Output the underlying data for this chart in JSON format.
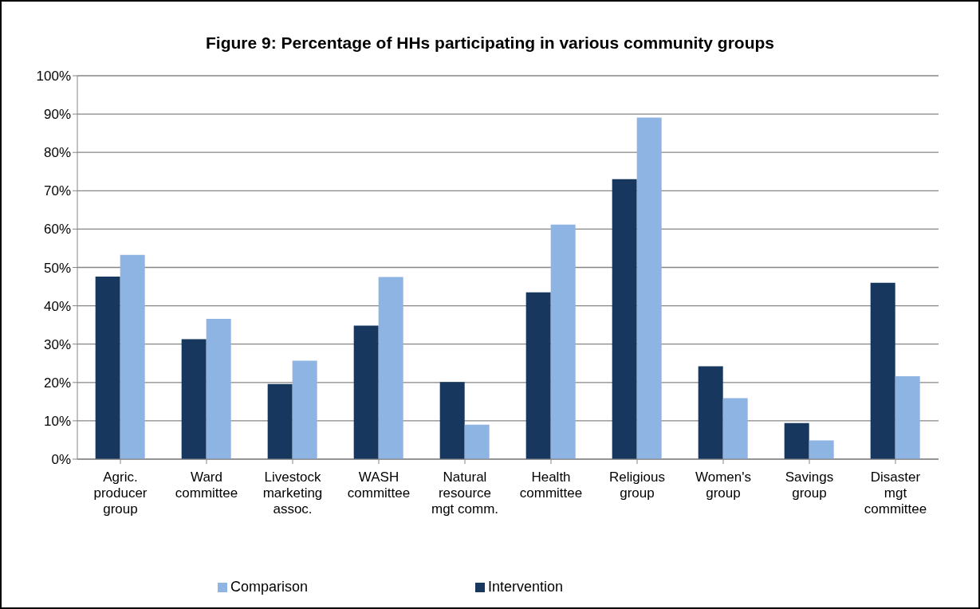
{
  "chart_data": {
    "type": "bar",
    "title": "Figure 9:  Percentage of HHs participating in various community groups",
    "categories": [
      "Agric. producer group",
      "Ward committee",
      "Livestock marketing assoc.",
      "WASH committee",
      "Natural resource mgt comm.",
      "Health committee",
      "Religious group",
      "Women's group",
      "Savings group",
      "Disaster mgt committee"
    ],
    "series": [
      {
        "name": "Intervention",
        "color": "#17375e",
        "values": [
          47.6,
          31.3,
          19.6,
          34.8,
          20.1,
          43.5,
          73.0,
          24.2,
          9.4,
          46.0
        ]
      },
      {
        "name": "Comparison",
        "color": "#8eb4e3",
        "values": [
          53.3,
          36.6,
          25.7,
          47.5,
          9.0,
          61.2,
          89.1,
          15.9,
          4.9,
          21.6
        ]
      }
    ],
    "ylim": [
      0,
      100
    ],
    "yticks": [
      {
        "value": 0,
        "label": "0%"
      },
      {
        "value": 10,
        "label": "10%"
      },
      {
        "value": 20,
        "label": "20%"
      },
      {
        "value": 30,
        "label": "30%"
      },
      {
        "value": 40,
        "label": "40%"
      },
      {
        "value": 50,
        "label": "50%"
      },
      {
        "value": 60,
        "label": "60%"
      },
      {
        "value": 70,
        "label": "70%"
      },
      {
        "value": 80,
        "label": "80%"
      },
      {
        "value": 90,
        "label": "90%"
      },
      {
        "value": 100,
        "label": "100%"
      }
    ],
    "grid": "y",
    "legend": "bottom"
  }
}
